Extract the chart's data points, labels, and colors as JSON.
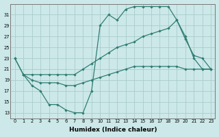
{
  "xlabel": "Humidex (Indice chaleur)",
  "bg_color": "#cce8e8",
  "line_color": "#2e7d72",
  "grid_color": "#aacccc",
  "ylim": [
    12,
    33
  ],
  "xlim": [
    -0.5,
    23.5
  ],
  "yticks": [
    13,
    15,
    17,
    19,
    21,
    23,
    25,
    27,
    29,
    31
  ],
  "xticks": [
    0,
    1,
    2,
    3,
    4,
    5,
    6,
    7,
    8,
    9,
    10,
    11,
    12,
    13,
    14,
    15,
    16,
    17,
    18,
    19,
    20,
    21,
    22,
    23
  ],
  "line1_x": [
    0,
    1,
    2,
    3,
    4,
    5,
    6,
    7,
    8,
    9,
    10,
    11,
    12,
    13,
    14,
    15,
    16,
    17,
    18,
    19,
    20,
    21,
    22,
    23
  ],
  "line1_y": [
    23,
    20,
    18,
    17,
    14.5,
    14.5,
    13.5,
    13,
    13,
    17,
    29,
    31,
    30,
    32,
    32.5,
    32.5,
    32.5,
    32.5,
    32.5,
    30,
    27,
    23,
    21,
    21
  ],
  "line2_x": [
    0,
    1,
    2,
    3,
    4,
    5,
    6,
    7,
    8,
    9,
    10,
    11,
    12,
    13,
    14,
    15,
    16,
    17,
    18,
    19,
    20,
    21,
    22,
    23
  ],
  "line2_y": [
    23,
    20,
    20,
    20,
    20,
    20,
    20,
    20,
    21,
    22,
    23,
    24,
    25,
    25.5,
    26,
    27,
    27.5,
    28,
    28.5,
    30,
    26.5,
    23.5,
    23,
    21
  ],
  "line3_x": [
    1,
    2,
    3,
    4,
    5,
    6,
    7,
    8,
    9,
    10,
    11,
    12,
    13,
    14,
    15,
    16,
    17,
    18,
    19,
    20,
    21,
    22,
    23
  ],
  "line3_y": [
    20,
    19,
    18.5,
    18.5,
    18.5,
    18,
    18,
    18.5,
    19,
    19.5,
    20,
    20.5,
    21,
    21.5,
    21.5,
    21.5,
    21.5,
    21.5,
    21.5,
    21,
    21,
    21,
    21
  ]
}
